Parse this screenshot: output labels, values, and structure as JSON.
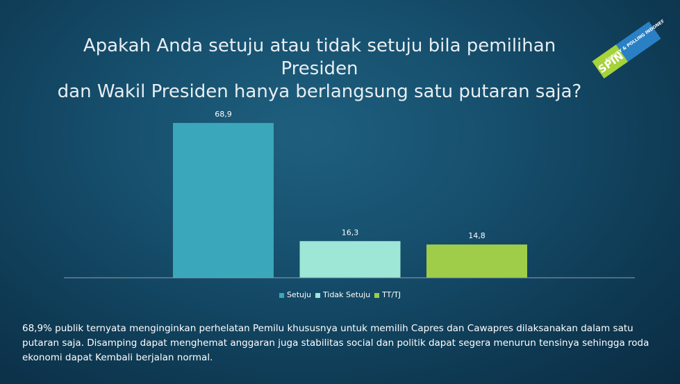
{
  "title": {
    "line1": "Apakah Anda setuju atau tidak setuju bila pemilihan Presiden",
    "line2": "dan Wakil Presiden hanya berlangsung satu putaran saja?"
  },
  "logo": {
    "brand": "SPIN",
    "tagline": "SURVEY & POLLING INDONESIA",
    "colors": {
      "green": "#a6d23a",
      "blue": "#2a80c5"
    }
  },
  "chart_data": {
    "type": "bar",
    "categories": [
      "Setuju",
      "Tidak Setuju",
      "TT/TJ"
    ],
    "values": [
      68.9,
      16.3,
      14.8
    ],
    "data_labels": [
      "68,9",
      "16,3",
      "14,8"
    ],
    "colors": [
      "#3aa7ba",
      "#9ee7d6",
      "#9fcd4a"
    ],
    "ylim": [
      0,
      70
    ],
    "legend": {
      "position": "bottom",
      "entries": [
        "Setuju",
        "Tidak Setuju",
        "TT/TJ"
      ]
    },
    "grid": false,
    "title": "",
    "xlabel": "",
    "ylabel": ""
  },
  "description": "68,9% publik ternyata menginginkan perhelatan Pemilu khususnya untuk memilih Capres dan Cawapres dilaksanakan dalam satu putaran saja. Disamping dapat menghemat anggaran juga stabilitas social dan politik dapat segera menurun tensinya sehingga roda ekonomi dapat Kembali berjalan normal."
}
